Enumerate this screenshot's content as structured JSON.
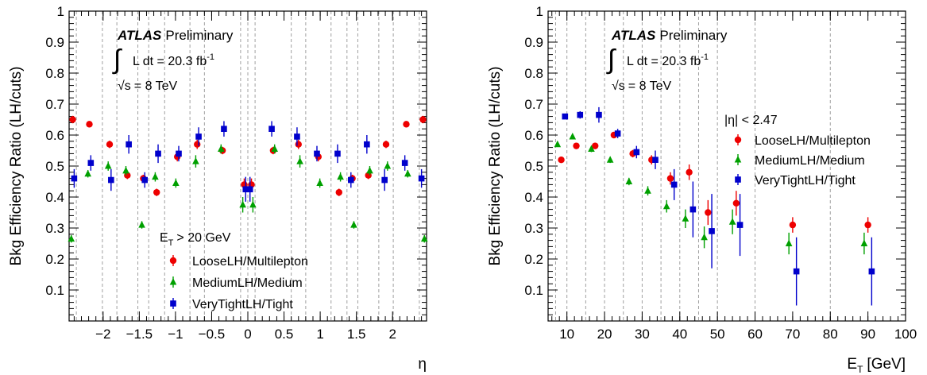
{
  "chart_data": [
    {
      "type": "scatter",
      "title": "",
      "xlabel": "η",
      "ylabel": "Bkg Efficiency Ratio (LH/cuts)",
      "xlim": [
        -2.47,
        2.47
      ],
      "ylim": [
        0,
        1
      ],
      "x_ticks": [
        -2,
        -1.5,
        -1,
        -0.5,
        0,
        0.5,
        1,
        1.5,
        2
      ],
      "x_tick_labels": [
        "−2",
        "−1.5",
        "−1",
        "−0.5",
        "0",
        "0.5",
        "1",
        "1.5",
        "2"
      ],
      "y_ticks": [
        0.1,
        0.2,
        0.3,
        0.4,
        0.5,
        0.6,
        0.7,
        0.8,
        0.9,
        1
      ],
      "y_tick_labels": [
        "0.1",
        "0.2",
        "0.3",
        "0.4",
        "0.5",
        "0.6",
        "0.7",
        "0.8",
        "0.9",
        "1"
      ],
      "grid": true,
      "grid_x": [
        -2.37,
        -2.01,
        -1.81,
        -1.52,
        -1.37,
        -1.15,
        -0.8,
        -0.6,
        -0.1,
        0,
        0.1,
        0.6,
        0.8,
        1.15,
        1.37,
        1.52,
        1.81,
        2.01,
        2.37
      ],
      "atlas_label": "ATLAS",
      "atlas_sub": "Preliminary",
      "lumi_integral": "∫",
      "lumi_text": "L dt = 20.3 fb",
      "lumi_exp": "-1",
      "energy_root": "√s",
      "energy_text": "= 8 TeV",
      "legend_title": "E",
      "legend_title_sub": "T",
      "legend_title_rest": "> 20 GeV",
      "legend_position": "bottom-center",
      "series": [
        {
          "name": "LooseLH/Multilepton",
          "color": "#ee0000",
          "marker": "circle",
          "x": [
            -2.42,
            -2.19,
            -1.91,
            -1.665,
            -1.445,
            -1.26,
            -0.975,
            -0.7,
            -0.35,
            -0.05,
            0.05,
            0.35,
            0.7,
            0.975,
            1.26,
            1.445,
            1.665,
            1.91,
            2.19,
            2.42
          ],
          "y": [
            0.65,
            0.635,
            0.57,
            0.47,
            0.46,
            0.415,
            0.53,
            0.57,
            0.55,
            0.44,
            0.44,
            0.55,
            0.57,
            0.53,
            0.415,
            0.46,
            0.47,
            0.57,
            0.635,
            0.65
          ],
          "err": [
            0.012,
            0.01,
            0.012,
            0.012,
            0.012,
            0.012,
            0.015,
            0.015,
            0.012,
            0.02,
            0.02,
            0.012,
            0.015,
            0.015,
            0.012,
            0.012,
            0.012,
            0.012,
            0.01,
            0.012
          ]
        },
        {
          "name": "MediumLH/Medium",
          "color": "#00a000",
          "marker": "triangle",
          "x": [
            -2.44,
            -2.21,
            -1.93,
            -1.685,
            -1.465,
            -1.28,
            -0.995,
            -0.72,
            -0.37,
            -0.07,
            0.07,
            0.37,
            0.72,
            0.995,
            1.28,
            1.465,
            1.685,
            1.93,
            2.21,
            2.44
          ],
          "y": [
            0.265,
            0.475,
            0.5,
            0.485,
            0.31,
            0.465,
            0.445,
            0.515,
            0.555,
            0.375,
            0.375,
            0.555,
            0.515,
            0.445,
            0.465,
            0.31,
            0.485,
            0.5,
            0.475,
            0.265
          ],
          "err": [
            0.012,
            0.012,
            0.015,
            0.015,
            0.012,
            0.015,
            0.015,
            0.02,
            0.015,
            0.025,
            0.025,
            0.015,
            0.02,
            0.015,
            0.015,
            0.012,
            0.015,
            0.015,
            0.012,
            0.012
          ]
        },
        {
          "name": "VeryTightLH/Tight",
          "color": "#0000cc",
          "marker": "square",
          "x": [
            -2.4,
            -2.17,
            -1.89,
            -1.645,
            -1.425,
            -1.24,
            -0.955,
            -0.68,
            -0.33,
            -0.03,
            0.03,
            0.33,
            0.68,
            0.955,
            1.24,
            1.425,
            1.645,
            1.89,
            2.17,
            2.4
          ],
          "y": [
            0.46,
            0.51,
            0.455,
            0.57,
            0.455,
            0.54,
            0.54,
            0.595,
            0.62,
            0.425,
            0.425,
            0.62,
            0.595,
            0.54,
            0.54,
            0.455,
            0.57,
            0.455,
            0.51,
            0.46
          ],
          "err": [
            0.03,
            0.025,
            0.035,
            0.03,
            0.025,
            0.03,
            0.025,
            0.03,
            0.025,
            0.04,
            0.04,
            0.025,
            0.03,
            0.025,
            0.03,
            0.025,
            0.03,
            0.035,
            0.025,
            0.03
          ]
        }
      ]
    },
    {
      "type": "scatter",
      "title": "",
      "xlabel": "E",
      "xlabel_sub": "T",
      "xlabel_rest": "[GeV]",
      "ylabel": "Bkg Efficiency Ratio (LH/cuts)",
      "xlim": [
        5,
        100
      ],
      "ylim": [
        0,
        1
      ],
      "x_ticks": [
        10,
        20,
        30,
        40,
        50,
        60,
        70,
        80,
        90,
        100
      ],
      "x_tick_labels": [
        "10",
        "20",
        "30",
        "40",
        "50",
        "60",
        "70",
        "80",
        "90",
        "100"
      ],
      "y_ticks": [
        0.1,
        0.2,
        0.3,
        0.4,
        0.5,
        0.6,
        0.7,
        0.8,
        0.9,
        1
      ],
      "y_tick_labels": [
        "0.1",
        "0.2",
        "0.3",
        "0.4",
        "0.5",
        "0.6",
        "0.7",
        "0.8",
        "0.9",
        "1"
      ],
      "grid": true,
      "grid_x": [
        7,
        10,
        15,
        20,
        25,
        30,
        35,
        40,
        45,
        50,
        60,
        80
      ],
      "atlas_label": "ATLAS",
      "atlas_sub": "Preliminary",
      "lumi_integral": "∫",
      "lumi_text": "L dt = 20.3 fb",
      "lumi_exp": "-1",
      "energy_root": "√s",
      "energy_text": "= 8 TeV",
      "legend_title": "|η| < 2.47",
      "legend_position": "top-right",
      "series": [
        {
          "name": "LooseLH/Multilepton",
          "color": "#ee0000",
          "marker": "circle",
          "x": [
            8.5,
            12.5,
            17.5,
            22.5,
            27.5,
            32.5,
            37.5,
            42.5,
            47.5,
            55,
            70,
            90
          ],
          "y": [
            0.52,
            0.565,
            0.565,
            0.6,
            0.54,
            0.52,
            0.46,
            0.48,
            0.35,
            0.38,
            0.31,
            0.31
          ],
          "err": [
            0.008,
            0.008,
            0.01,
            0.01,
            0.012,
            0.015,
            0.02,
            0.025,
            0.04,
            0.04,
            0.025,
            0.025
          ]
        },
        {
          "name": "MediumLH/Medium",
          "color": "#00a000",
          "marker": "triangle",
          "x": [
            7.5,
            11.5,
            16.5,
            21.5,
            26.5,
            31.5,
            36.5,
            41.5,
            46.5,
            54,
            69,
            89
          ],
          "y": [
            0.57,
            0.595,
            0.555,
            0.52,
            0.45,
            0.42,
            0.37,
            0.33,
            0.27,
            0.32,
            0.25,
            0.25
          ],
          "err": [
            0.008,
            0.008,
            0.01,
            0.01,
            0.012,
            0.015,
            0.02,
            0.03,
            0.035,
            0.04,
            0.035,
            0.035
          ]
        },
        {
          "name": "VeryTightLH/Tight",
          "color": "#0000cc",
          "marker": "square",
          "x": [
            9.5,
            13.5,
            18.5,
            23.5,
            28.5,
            33.5,
            38.5,
            43.5,
            48.5,
            56,
            71,
            91
          ],
          "y": [
            0.66,
            0.665,
            0.665,
            0.605,
            0.545,
            0.52,
            0.44,
            0.36,
            0.29,
            0.31,
            0.16,
            0.16
          ],
          "err": [
            0.008,
            0.012,
            0.025,
            0.015,
            0.02,
            0.03,
            0.05,
            0.09,
            0.12,
            0.1,
            0.11,
            0.11
          ]
        }
      ]
    }
  ]
}
